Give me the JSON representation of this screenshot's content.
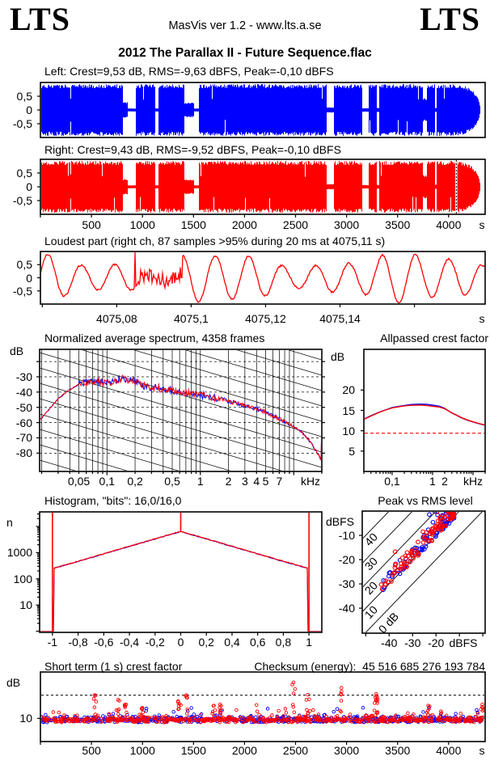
{
  "header": {
    "logo_left": "LTS",
    "app_info": "MasVis ver 1.2 - www.lts.a.se",
    "logo_right": "LTS"
  },
  "file_title": "2012 The Parallax II - Future Sequence.flac",
  "colors": {
    "left_channel": "#0000ff",
    "right_channel": "#ff0000",
    "grid": "#000000",
    "reference_dashed": "#ff0000",
    "marker_dashed": "#000000",
    "background": "#ffffff",
    "text": "#000000"
  },
  "chart_data": [
    {
      "id": "wave_left",
      "type": "area",
      "channel": "left",
      "title": "Left: Crest=9,53 dB, RMS=-9,63 dBFS, Peak=-0,10 dBFS",
      "crest_db": 9.53,
      "rms_dbfs": -9.63,
      "peak_dbfs": -0.1,
      "color": "#0000ff",
      "ylim": [
        -1,
        1
      ],
      "yticks": [
        {
          "v": 0.5,
          "label": "0,5"
        },
        {
          "v": 0,
          "label": "0"
        },
        {
          "v": -0.5,
          "label": "-0,5"
        }
      ],
      "xlim_s": [
        0,
        4358
      ],
      "seed": 7,
      "envelope": [
        [
          0,
          0.067,
          1
        ],
        [
          0.067,
          0.069,
          0.5
        ],
        [
          0.069,
          0.185,
          1
        ],
        [
          0.185,
          0.196,
          0.3
        ],
        [
          0.196,
          0.213,
          0.06
        ],
        [
          0.213,
          0.258,
          1
        ],
        [
          0.258,
          0.264,
          0.06
        ],
        [
          0.264,
          0.322,
          1
        ],
        [
          0.322,
          0.345,
          0.28
        ],
        [
          0.345,
          0.355,
          0.06
        ],
        [
          0.355,
          0.642,
          1
        ],
        [
          0.642,
          0.659,
          0.1
        ],
        [
          0.659,
          0.723,
          1
        ],
        [
          0.723,
          0.737,
          0.07
        ],
        [
          0.737,
          0.755,
          1
        ],
        [
          0.755,
          0.761,
          0.08
        ],
        [
          0.761,
          0.859,
          1
        ],
        [
          0.859,
          0.869,
          0.45
        ],
        [
          0.869,
          0.886,
          1
        ],
        [
          0.886,
          0.89,
          0.08
        ],
        [
          0.89,
          0.945,
          1
        ],
        [
          0.945,
          0.988,
          "fade"
        ],
        [
          0.988,
          1,
          0
        ]
      ]
    },
    {
      "id": "wave_right",
      "type": "area",
      "channel": "right",
      "title": "Right: Crest=9,43 dB, RMS=-9,52 dBFS, Peak=-0,10 dBFS",
      "crest_db": 9.43,
      "rms_dbfs": -9.52,
      "peak_dbfs": -0.1,
      "color": "#ff0000",
      "ylim": [
        -1,
        1
      ],
      "yticks": [
        {
          "v": 0.5,
          "label": "0,5"
        },
        {
          "v": 0,
          "label": "0"
        },
        {
          "v": -0.5,
          "label": "-0,5"
        }
      ],
      "xlim_s": [
        0,
        4358
      ],
      "seed": 13,
      "marker_s": 4075.11,
      "xticks": [
        {
          "v": 500,
          "label": "500"
        },
        {
          "v": 1000,
          "label": "1000"
        },
        {
          "v": 1500,
          "label": "1500"
        },
        {
          "v": 2000,
          "label": "2000"
        },
        {
          "v": 2500,
          "label": "2500"
        },
        {
          "v": 3000,
          "label": "3000"
        },
        {
          "v": 3500,
          "label": "3500"
        },
        {
          "v": 4000,
          "label": "4000"
        }
      ],
      "x_unit": "s",
      "envelope": [
        [
          0,
          0.067,
          1
        ],
        [
          0.067,
          0.069,
          0.5
        ],
        [
          0.069,
          0.185,
          1
        ],
        [
          0.185,
          0.196,
          0.3
        ],
        [
          0.196,
          0.213,
          0.06
        ],
        [
          0.213,
          0.258,
          1
        ],
        [
          0.258,
          0.264,
          0.06
        ],
        [
          0.264,
          0.322,
          1
        ],
        [
          0.322,
          0.345,
          0.28
        ],
        [
          0.345,
          0.355,
          0.06
        ],
        [
          0.355,
          0.642,
          1
        ],
        [
          0.642,
          0.659,
          0.1
        ],
        [
          0.659,
          0.723,
          1
        ],
        [
          0.723,
          0.737,
          0.07
        ],
        [
          0.737,
          0.755,
          1
        ],
        [
          0.755,
          0.761,
          0.08
        ],
        [
          0.761,
          0.859,
          1
        ],
        [
          0.859,
          0.869,
          0.45
        ],
        [
          0.869,
          0.886,
          1
        ],
        [
          0.886,
          0.89,
          0.08
        ],
        [
          0.89,
          0.945,
          1
        ],
        [
          0.945,
          0.988,
          "fade"
        ],
        [
          0.988,
          1,
          0
        ]
      ]
    },
    {
      "id": "loudest",
      "type": "line",
      "title": "Loudest part (right ch, 87 samples >95% during 20 ms at 4075,11 s)",
      "samples_over_95": 87,
      "window_ms": 20,
      "at_s": 4075.11,
      "color": "#ff0000",
      "ylim": [
        -1,
        1
      ],
      "yticks": [
        {
          "v": 0.5,
          "label": "0,5"
        },
        {
          "v": 0,
          "label": "0"
        },
        {
          "v": -0.5,
          "label": "-0,5"
        }
      ],
      "xlim_s": [
        4075.0595,
        4075.179
      ],
      "xticks": [
        {
          "v": 4075.08,
          "label": "4075,08"
        },
        {
          "v": 4075.1,
          "label": "4075,1"
        },
        {
          "v": 4075.12,
          "label": "4075,12"
        },
        {
          "v": 4075.14,
          "label": "4075,14"
        }
      ],
      "x_unit": "s",
      "cycles": 13.3,
      "noise_zone": [
        0.22,
        0.32
      ],
      "seed": 21
    },
    {
      "id": "spectrum",
      "type": "line",
      "title": "Normalized average spectrum, 4358 frames",
      "frames": 4358,
      "ylabel": "dB",
      "ylim": [
        -92,
        -12
      ],
      "yticks": [
        {
          "v": -30,
          "label": "-30"
        },
        {
          "v": -40,
          "label": "-40"
        },
        {
          "v": -50,
          "label": "-50"
        },
        {
          "v": -60,
          "label": "-60"
        },
        {
          "v": -70,
          "label": "-70"
        },
        {
          "v": -80,
          "label": "-80"
        }
      ],
      "flim_khz": [
        0.019,
        20
      ],
      "xticks": [
        {
          "v": 0.05,
          "label": "0,05"
        },
        {
          "v": 0.1,
          "label": "0,1"
        },
        {
          "v": 0.2,
          "label": "0,2"
        },
        {
          "v": 0.5,
          "label": "0,5"
        },
        {
          "v": 1,
          "label": "1"
        },
        {
          "v": 2,
          "label": "2"
        },
        {
          "v": 3,
          "label": "3"
        },
        {
          "v": 4,
          "label": "4"
        },
        {
          "v": 5,
          "label": "5"
        },
        {
          "v": 7,
          "label": "7"
        }
      ],
      "x_unit": "kHz",
      "points": [
        [
          0.019,
          -58.5
        ],
        [
          0.022,
          -54
        ],
        [
          0.025,
          -50
        ],
        [
          0.03,
          -44.5
        ],
        [
          0.035,
          -41
        ],
        [
          0.04,
          -38.5
        ],
        [
          0.045,
          -36.5
        ],
        [
          0.05,
          -35
        ],
        [
          0.06,
          -33.8
        ],
        [
          0.07,
          -33.2
        ],
        [
          0.08,
          -33.5
        ],
        [
          0.09,
          -34
        ],
        [
          0.1,
          -33
        ],
        [
          0.11,
          -33.5
        ],
        [
          0.13,
          -32
        ],
        [
          0.15,
          -30.5
        ],
        [
          0.17,
          -33
        ],
        [
          0.19,
          -32
        ],
        [
          0.21,
          -33.5
        ],
        [
          0.25,
          -36
        ],
        [
          0.3,
          -37
        ],
        [
          0.35,
          -37.5
        ],
        [
          0.4,
          -38
        ],
        [
          0.5,
          -39
        ],
        [
          0.6,
          -40
        ],
        [
          0.7,
          -40.5
        ],
        [
          0.8,
          -41
        ],
        [
          1,
          -42
        ],
        [
          1.2,
          -43
        ],
        [
          1.5,
          -44.5
        ],
        [
          1.8,
          -44.5
        ],
        [
          2,
          -46
        ],
        [
          2.5,
          -47.5
        ],
        [
          3,
          -49
        ],
        [
          3.5,
          -50
        ],
        [
          4,
          -51
        ],
        [
          5,
          -53
        ],
        [
          6,
          -55.5
        ],
        [
          7,
          -57.5
        ],
        [
          8,
          -59.5
        ],
        [
          9,
          -61
        ],
        [
          10,
          -62.5
        ],
        [
          12,
          -66
        ],
        [
          14,
          -70
        ],
        [
          16,
          -75
        ],
        [
          18,
          -80
        ],
        [
          19.5,
          -84
        ],
        [
          20,
          -85.5
        ]
      ],
      "series": [
        {
          "name": "left",
          "color": "#0000ff",
          "seed": 31
        },
        {
          "name": "right",
          "color": "#ff0000",
          "seed": 32
        }
      ]
    },
    {
      "id": "allpassed",
      "type": "line",
      "title": "Allpassed crest factor",
      "ylabel": "dB",
      "ylim": [
        0,
        30
      ],
      "yticks": [
        {
          "v": 20,
          "label": "20"
        },
        {
          "v": 15,
          "label": "15"
        },
        {
          "v": 10,
          "label": "10"
        },
        {
          "v": 5,
          "label": "5"
        }
      ],
      "flim_khz": [
        0.02,
        20
      ],
      "xticks": [
        {
          "v": 0.1,
          "label": "0,1"
        },
        {
          "v": 1,
          "label": "1"
        },
        {
          "v": 2,
          "label": "2"
        }
      ],
      "x_unit": "kHz",
      "ref_dashed_db": 9.4,
      "series": [
        {
          "name": "left",
          "color": "#0000ff",
          "points": [
            [
              0.02,
              12.85
            ],
            [
              0.03,
              13.7
            ],
            [
              0.05,
              14.65
            ],
            [
              0.08,
              15.35
            ],
            [
              0.1,
              15.7
            ],
            [
              0.15,
              16.0
            ],
            [
              0.2,
              16.2
            ],
            [
              0.3,
              16.45
            ],
            [
              0.5,
              16.55
            ],
            [
              0.7,
              16.5
            ],
            [
              1,
              16.3
            ],
            [
              1.5,
              16.0
            ],
            [
              2,
              15.5
            ],
            [
              3,
              14.35
            ],
            [
              4,
              13.75
            ],
            [
              5,
              13.25
            ],
            [
              7,
              12.65
            ],
            [
              10,
              12.15
            ],
            [
              15,
              11.65
            ],
            [
              20,
              11.35
            ]
          ]
        },
        {
          "name": "right",
          "color": "#ff0000",
          "points": [
            [
              0.02,
              12.8
            ],
            [
              0.03,
              13.6
            ],
            [
              0.05,
              14.6
            ],
            [
              0.08,
              15.3
            ],
            [
              0.1,
              15.6
            ],
            [
              0.15,
              15.9
            ],
            [
              0.2,
              16.1
            ],
            [
              0.3,
              16.25
            ],
            [
              0.5,
              16.3
            ],
            [
              0.7,
              16.2
            ],
            [
              1,
              16.0
            ],
            [
              1.5,
              15.8
            ],
            [
              2,
              15.4
            ],
            [
              3,
              14.4
            ],
            [
              4,
              13.8
            ],
            [
              5,
              13.3
            ],
            [
              7,
              12.7
            ],
            [
              10,
              12.2
            ],
            [
              15,
              11.7
            ],
            [
              20,
              11.4
            ]
          ]
        }
      ]
    },
    {
      "id": "histogram",
      "type": "line",
      "title": "Histogram, \"bits\": 16,0/16,0",
      "bits": "16,0/16,0",
      "ylabel": "n",
      "ylog": true,
      "ylim": [
        0.9,
        36000
      ],
      "yticks": [
        {
          "v": 1000,
          "label": "1000"
        },
        {
          "v": 100,
          "label": "100"
        },
        {
          "v": 10,
          "label": "10"
        }
      ],
      "xlim": [
        -1.1,
        1.1
      ],
      "xticks": [
        {
          "v": -1,
          "label": "-1"
        },
        {
          "v": -0.8,
          "label": "-0,8"
        },
        {
          "v": -0.6,
          "label": "-0,6"
        },
        {
          "v": -0.4,
          "label": "-0,4"
        },
        {
          "v": -0.2,
          "label": "-0,2"
        },
        {
          "v": 0,
          "label": "0"
        },
        {
          "v": 0.2,
          "label": "0,2"
        },
        {
          "v": 0.4,
          "label": "0,4"
        },
        {
          "v": 0.6,
          "label": "0,6"
        },
        {
          "v": 0.8,
          "label": "0,8"
        },
        {
          "v": 1,
          "label": "1"
        }
      ],
      "peak_n": 6500,
      "edge_n": 270,
      "edge_x": 0.97,
      "spikes_x": [
        -1,
        0,
        1
      ],
      "seed": 41
    },
    {
      "id": "peak_rms",
      "type": "scatter",
      "title": "Peak vs RMS level",
      "ylabel": "dBFS",
      "ylim": [
        -50.3,
        0
      ],
      "yticks": [
        {
          "v": -10,
          "label": "-10"
        },
        {
          "v": -20,
          "label": "-20"
        },
        {
          "v": -30,
          "label": "-30"
        },
        {
          "v": -40,
          "label": "-40"
        }
      ],
      "xlim": [
        -51.5,
        1
      ],
      "xticks": [
        {
          "v": -40,
          "label": "-40"
        },
        {
          "v": -30,
          "label": "-30"
        },
        {
          "v": -20,
          "label": "-20"
        }
      ],
      "x_unit": "dBFS",
      "diagonals": [
        {
          "c": 0,
          "label": "0 dB"
        },
        {
          "c": 10,
          "label": "10"
        },
        {
          "c": 20,
          "label": "20"
        },
        {
          "c": 30,
          "label": "30"
        },
        {
          "c": 40,
          "label": "40"
        }
      ],
      "n_points": 130,
      "crest_base_db": 9.3,
      "crest_spread_db": 6.4,
      "seed": 51
    },
    {
      "id": "crest_time",
      "type": "scatter",
      "title": "Short term (1 s) crest factor",
      "title2": "Checksum (energy):  45 516 685 276 193 784",
      "checksum_energy": "45 516 685 276 193 784",
      "ylabel": "dB",
      "ylim": [
        0,
        30
      ],
      "yticks": [
        {
          "v": 10,
          "label": "10"
        }
      ],
      "ref_dashed_db": 20,
      "xlim_s": [
        0,
        4358
      ],
      "xticks": [
        {
          "v": 500,
          "label": "500"
        },
        {
          "v": 1000,
          "label": "1000"
        },
        {
          "v": 1500,
          "label": "1500"
        },
        {
          "v": 2000,
          "label": "2000"
        },
        {
          "v": 2500,
          "label": "2500"
        },
        {
          "v": 3000,
          "label": "3000"
        },
        {
          "v": 3500,
          "label": "3500"
        },
        {
          "v": 4000,
          "label": "4000"
        }
      ],
      "x_unit": "s",
      "seed": 61,
      "clusters": [
        [
          530,
          20
        ],
        [
          760,
          18
        ],
        [
          840,
          16
        ],
        [
          1000,
          14.5
        ],
        [
          1350,
          17.5
        ],
        [
          1430,
          20
        ],
        [
          1700,
          15.5
        ],
        [
          1760,
          16
        ],
        [
          2480,
          25.5
        ],
        [
          2620,
          20.2
        ],
        [
          2950,
          23.2
        ],
        [
          3290,
          20.6
        ],
        [
          3300,
          19
        ],
        [
          3800,
          15.5
        ],
        [
          4330,
          16
        ]
      ]
    }
  ]
}
